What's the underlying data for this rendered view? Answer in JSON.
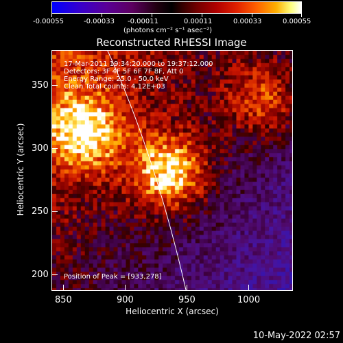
{
  "colorbar": {
    "tick_labels": [
      "-0.00055",
      "-0.00033",
      "-0.00011",
      "0.00011",
      "0.00033",
      "0.00055"
    ],
    "unit_label": "(photons cm⁻² s⁻¹ asec⁻²)"
  },
  "title": "Reconstructed RHESSI Image",
  "annotation": {
    "time_range": "17-Mar-2011 19:34:20.000 to 19:37:12.000",
    "detectors": "Detectors: 3F 4F 5F 6F 7F 8F, Att 0",
    "energy": "Energy Range: 25.0 - 50.0 keV",
    "clean": "Clean    Total counts: 4.12E+03",
    "peak": "Position of Peak = [933,278]"
  },
  "chart_data": {
    "type": "heatmap",
    "title": "Reconstructed RHESSI Image",
    "xlabel": "Heliocentric X (arcsec)",
    "ylabel": "Heliocentric Y (arcsec)",
    "xlim": [
      840,
      1030
    ],
    "ylim": [
      185,
      375
    ],
    "x_ticks": [
      "850",
      "900",
      "950",
      "1000"
    ],
    "y_ticks": [
      "200",
      "250",
      "300",
      "350"
    ],
    "color_range": [
      -0.00055,
      0.00055
    ],
    "peak_position": [
      933,
      278
    ],
    "sources": [
      {
        "x": 933,
        "y": 278,
        "value": 0.00055
      },
      {
        "x": 866,
        "y": 310,
        "value": 0.00045
      },
      {
        "x": 1008,
        "y": 335,
        "value": 0.00035
      }
    ]
  },
  "timestamp": "10-May-2022 02:57"
}
